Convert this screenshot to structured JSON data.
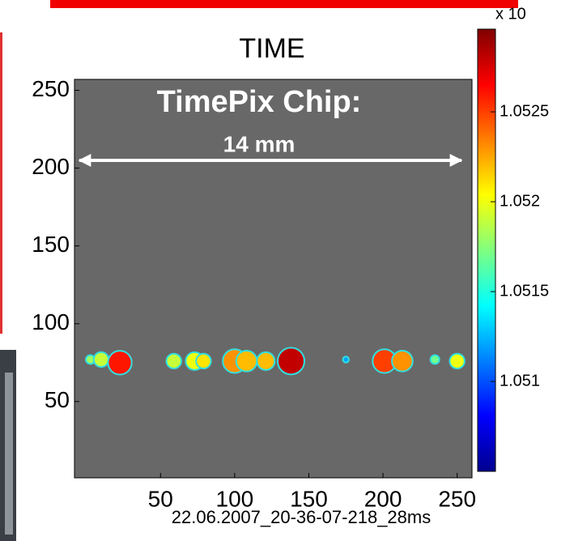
{
  "chart_data": {
    "type": "image",
    "title": "TIME",
    "annotations": [
      "TimePix Chip:",
      "14 mm"
    ],
    "x_label": "22.06.2007_20-36-07-218_28ms",
    "xlim": [
      -8,
      260
    ],
    "xticks": [
      50,
      100,
      150,
      200,
      250
    ],
    "ylim": [
      1,
      257
    ],
    "yticks": [
      50,
      100,
      150,
      200,
      250
    ],
    "background_color": "#686868",
    "spots": [
      {
        "x": 2.7,
        "y": 77,
        "radius": 3,
        "value": 1.0518
      },
      {
        "x": 10,
        "y": 77,
        "radius": 5,
        "value": 1.0519
      },
      {
        "x": 22.6,
        "y": 75,
        "radius": 8,
        "value": 1.0526
      },
      {
        "x": 59,
        "y": 76,
        "radius": 5,
        "value": 1.0519
      },
      {
        "x": 73,
        "y": 76,
        "radius": 6,
        "value": 1.052
      },
      {
        "x": 79,
        "y": 76,
        "radius": 5,
        "value": 1.0521
      },
      {
        "x": 100,
        "y": 76,
        "radius": 8,
        "value": 1.0523
      },
      {
        "x": 108,
        "y": 76,
        "radius": 7,
        "value": 1.0522
      },
      {
        "x": 121,
        "y": 76,
        "radius": 6,
        "value": 1.0522
      },
      {
        "x": 138,
        "y": 76,
        "radius": 9,
        "value": 1.0528
      },
      {
        "x": 175,
        "y": 77,
        "radius": 2,
        "value": 1.0512
      },
      {
        "x": 201,
        "y": 76,
        "radius": 8,
        "value": 1.0525
      },
      {
        "x": 213,
        "y": 76,
        "radius": 7,
        "value": 1.0523
      },
      {
        "x": 235,
        "y": 77,
        "radius": 3,
        "value": 1.0517
      },
      {
        "x": 250,
        "y": 76,
        "radius": 5,
        "value": 1.052
      }
    ],
    "colorbar": {
      "label": "x 10",
      "lim": [
        1.0505,
        1.05296
      ],
      "ticks": [
        1.051,
        1.0515,
        1.052,
        1.0525
      ]
    }
  }
}
